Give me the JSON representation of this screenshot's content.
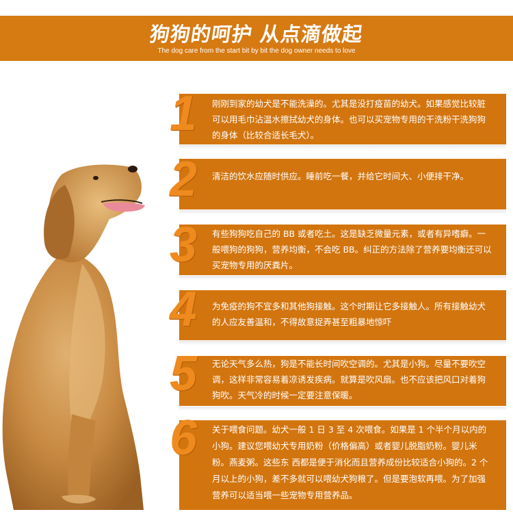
{
  "header": {
    "title": "狗狗的呵护 从点滴做起",
    "subtitle": "The dog care from the start bit by bit the dog owner needs to love"
  },
  "colors": {
    "accent": "#d67a12",
    "card": "#d2750f",
    "numeral": "#ee8a1e"
  },
  "tips": [
    {
      "number": "1",
      "text": "刚刚到家的幼犬是不能洗澡的。尤其是没打疫苗的幼犬。如果感觉比较脏可以用毛巾沾温水擦拭幼犬的身体。也可以买宠物专用的干洗粉干洗狗狗的身体（比较合适长毛犬）。"
    },
    {
      "number": "2",
      "text": "清洁的饮水应随时供应。睡前吃一餐，并给它时间大、小便排干净。"
    },
    {
      "number": "3",
      "text": "有些狗狗吃自己的 BB 或者吃土。这是缺乏微量元素，或者有异嗜癖。一般喂狗的狗狗，营养均衡，不会吃 BB。纠正的方法除了营养要均衡还可以买宠物专用的厌粪片。"
    },
    {
      "number": "4",
      "text": "为免疫的狗不宜多和其他狗接触。这个时期让它多接触人。所有接触幼犬的人应友善温和，不得故意捉弄甚至粗暴地惊吓"
    },
    {
      "number": "5",
      "text": "无论天气多么热，狗是不能长时间吹空调的。尤其是小狗。尽量不要吹空调，这样非常容易着凉诱发疾病。就算是吹风扇。也不应该把风口对着狗狗吹。天气冷的时候一定要注意保暖。"
    },
    {
      "number": "6",
      "text": "关于喂食问题。幼犬一般 1 日 3 至 4 次喂食。如果是 1 个半个月以内的小狗。建议您喂幼犬专用奶粉（价格偏高）或者婴儿脱脂奶粉。婴儿米粉。燕麦粥。这些东 西都是便于消化而且营养成份比较适合小狗的。2 个月以上的小狗，差不多就可以喂幼犬狗粮了。但是要泡软再喂。为了加强营养可以适当喂一些宠物专用营养品。"
    }
  ]
}
